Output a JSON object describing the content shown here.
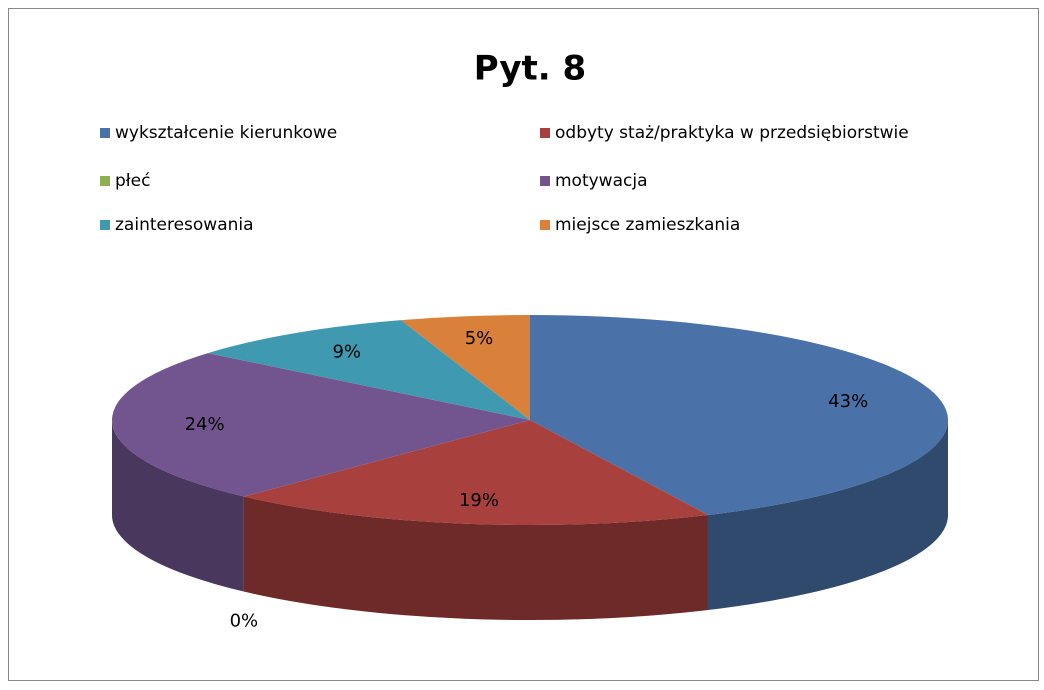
{
  "chart_data": {
    "type": "pie",
    "title": "Pyt. 8",
    "categories": [
      "wykształcenie kierunkowe",
      "odbyty staż/praktyka w przedsiębiorstwie",
      "płeć",
      "motywacja",
      "zainteresowania",
      "miejsce zamieszkania"
    ],
    "values": [
      43,
      19,
      0,
      24,
      9,
      5
    ],
    "value_labels": [
      "43%",
      "19%",
      "0%",
      "24%",
      "9%",
      "5%"
    ],
    "colors": [
      "#4a72a8",
      "#a8413e",
      "#8fb050",
      "#72558f",
      "#3f9ab1",
      "#d9803a"
    ]
  }
}
